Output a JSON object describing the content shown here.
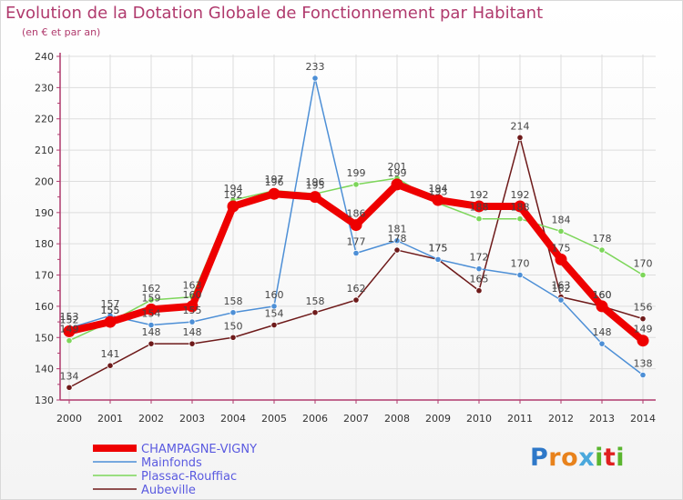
{
  "header": {
    "title": "Evolution de la Dotation Globale de Fonctionnement par Habitant",
    "subtitle": "(en € et par an)"
  },
  "logo": {
    "text": "Proxiti",
    "letter_colors": [
      "#2e78c8",
      "#e8821c",
      "#e8821c",
      "#4aa8dc",
      "#5ab52e",
      "#e02020",
      "#5ab52e"
    ]
  },
  "colors": {
    "axis": "#b03a6d",
    "grid": "#dddddd",
    "tick_text": "#333333",
    "value_text": "#444444",
    "legend_text": "#5a5ae0"
  },
  "chart_data": {
    "type": "line",
    "title": "Evolution de la Dotation Globale de Fonctionnement par Habitant",
    "subtitle": "(en € et par an)",
    "xlabel": "",
    "ylabel": "",
    "ylim": [
      130,
      240
    ],
    "yticks": [
      130,
      140,
      150,
      160,
      170,
      180,
      190,
      200,
      210,
      220,
      230,
      240
    ],
    "categories": [
      "2000",
      "2001",
      "2002",
      "2003",
      "2004",
      "2005",
      "2006",
      "2007",
      "2008",
      "2009",
      "2010",
      "2011",
      "2012",
      "2013",
      "2014"
    ],
    "grid": true,
    "legend_position": "bottom-left",
    "series": [
      {
        "name": "Aubeville",
        "color": "#6e1a1a",
        "values": [
          134,
          141,
          148,
          148,
          150,
          154,
          158,
          162,
          178,
          175,
          165,
          214,
          163,
          160,
          156
        ]
      },
      {
        "name": "Plassac-Rouffiac",
        "color": "#7dd65a",
        "values": [
          149,
          155,
          162,
          163,
          194,
          197,
          196,
          199,
          201,
          193,
          188,
          188,
          184,
          178,
          170
        ]
      },
      {
        "name": "Mainfonds",
        "color": "#4d8fd6",
        "values": [
          153,
          157,
          154,
          155,
          158,
          160,
          233,
          177,
          181,
          175,
          172,
          170,
          162,
          148,
          138
        ]
      },
      {
        "name": "CHAMPAGNE-VIGNY",
        "color": "#ee0000",
        "values": [
          152,
          155,
          159,
          160,
          192,
          196,
          195,
          186,
          199,
          194,
          192,
          192,
          175,
          160,
          149
        ]
      }
    ],
    "legend_order": [
      "CHAMPAGNE-VIGNY",
      "Mainfonds",
      "Plassac-Rouffiac",
      "Aubeville"
    ]
  }
}
